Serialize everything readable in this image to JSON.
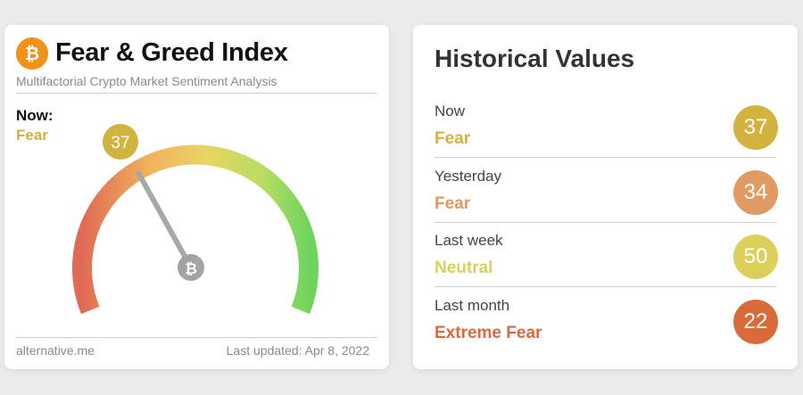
{
  "index_card": {
    "title": "Fear & Greed Index",
    "subtitle": "Multifactorial Crypto Market Sentiment Analysis",
    "now_label": "Now:",
    "now_classification": "Fear",
    "now_value": "37",
    "gauge_value": 37,
    "gauge_max": 100,
    "bubble_color": "#d4b23f",
    "footer_source": "alternative.me",
    "footer_updated": "Last updated: Apr 8, 2022",
    "logo_icon": "bitcoin-icon"
  },
  "history": {
    "title": "Historical Values",
    "rows": [
      {
        "label": "Now",
        "classification": "Fear",
        "value": "37",
        "color": "#d4b23f"
      },
      {
        "label": "Yesterday",
        "classification": "Fear",
        "value": "34",
        "color": "#e19a62"
      },
      {
        "label": "Last week",
        "classification": "Neutral",
        "value": "50",
        "color": "#dcd05a"
      },
      {
        "label": "Last month",
        "classification": "Extreme Fear",
        "value": "22",
        "color": "#d96a3a"
      }
    ]
  }
}
